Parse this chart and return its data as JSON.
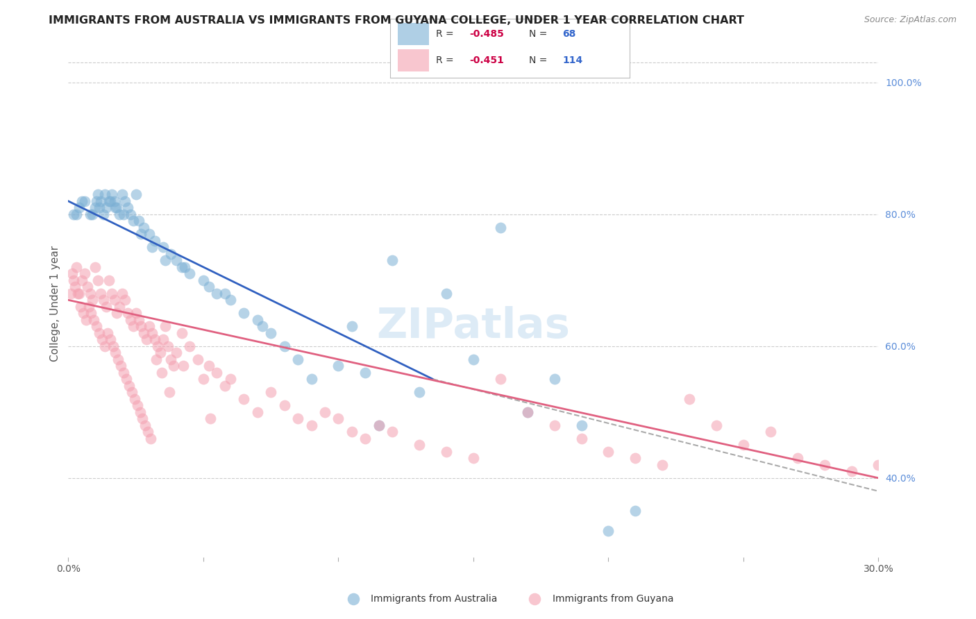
{
  "title": "IMMIGRANTS FROM AUSTRALIA VS IMMIGRANTS FROM GUYANA COLLEGE, UNDER 1 YEAR CORRELATION CHART",
  "source": "Source: ZipAtlas.com",
  "ylabel": "College, Under 1 year",
  "australia_color": "#7bafd4",
  "guyana_color": "#f4a0b0",
  "australia_label": "Immigrants from Australia",
  "guyana_label": "Immigrants from Guyana",
  "R_australia": -0.485,
  "N_australia": 68,
  "R_guyana": -0.451,
  "N_guyana": 114,
  "background_color": "#ffffff",
  "grid_color": "#cccccc",
  "right_axis_color": "#5b8dd9",
  "australia_scatter": {
    "x": [
      0.3,
      0.5,
      0.8,
      1.0,
      1.1,
      1.2,
      1.3,
      1.4,
      1.5,
      1.6,
      1.7,
      1.8,
      1.9,
      2.0,
      2.1,
      2.2,
      2.3,
      2.5,
      2.6,
      2.8,
      3.0,
      3.2,
      3.5,
      3.8,
      4.0,
      4.2,
      4.5,
      5.0,
      5.2,
      5.5,
      6.0,
      6.5,
      7.0,
      7.5,
      8.0,
      8.5,
      9.0,
      10.0,
      10.5,
      11.0,
      12.0,
      13.0,
      14.0,
      15.0,
      16.0,
      17.0,
      18.0,
      19.0,
      20.0,
      21.0,
      0.2,
      0.4,
      0.6,
      0.9,
      1.05,
      1.15,
      1.35,
      1.55,
      1.75,
      2.05,
      2.4,
      2.7,
      3.1,
      3.6,
      4.3,
      5.8,
      7.2,
      11.5
    ],
    "y": [
      80,
      82,
      80,
      81,
      83,
      82,
      80,
      81,
      82,
      83,
      82,
      81,
      80,
      83,
      82,
      81,
      80,
      83,
      79,
      78,
      77,
      76,
      75,
      74,
      73,
      72,
      71,
      70,
      69,
      68,
      67,
      65,
      64,
      62,
      60,
      58,
      55,
      57,
      63,
      56,
      73,
      53,
      68,
      58,
      78,
      50,
      55,
      48,
      32,
      35,
      80,
      81,
      82,
      80,
      82,
      81,
      83,
      82,
      81,
      80,
      79,
      77,
      75,
      73,
      72,
      68,
      63,
      48
    ]
  },
  "guyana_scatter": {
    "x": [
      0.1,
      0.2,
      0.3,
      0.4,
      0.5,
      0.6,
      0.7,
      0.8,
      0.9,
      1.0,
      1.1,
      1.2,
      1.3,
      1.4,
      1.5,
      1.6,
      1.7,
      1.8,
      1.9,
      2.0,
      2.1,
      2.2,
      2.3,
      2.4,
      2.5,
      2.6,
      2.7,
      2.8,
      2.9,
      3.0,
      3.1,
      3.2,
      3.3,
      3.4,
      3.5,
      3.6,
      3.7,
      3.8,
      3.9,
      4.0,
      4.2,
      4.5,
      4.8,
      5.0,
      5.2,
      5.5,
      5.8,
      6.0,
      6.5,
      7.0,
      7.5,
      8.0,
      8.5,
      9.0,
      9.5,
      10.0,
      10.5,
      11.0,
      11.5,
      12.0,
      13.0,
      14.0,
      15.0,
      16.0,
      17.0,
      18.0,
      19.0,
      20.0,
      21.0,
      22.0,
      23.0,
      24.0,
      25.0,
      26.0,
      27.0,
      28.0,
      29.0,
      30.0,
      0.15,
      0.25,
      0.35,
      0.45,
      0.55,
      0.65,
      0.75,
      0.85,
      0.95,
      1.05,
      1.15,
      1.25,
      1.35,
      1.45,
      1.55,
      1.65,
      1.75,
      1.85,
      1.95,
      2.05,
      2.15,
      2.25,
      2.35,
      2.45,
      2.55,
      2.65,
      2.75,
      2.85,
      2.95,
      3.05,
      3.25,
      3.45,
      3.75,
      4.25,
      5.25
    ],
    "y": [
      68,
      70,
      72,
      68,
      70,
      71,
      69,
      68,
      67,
      72,
      70,
      68,
      67,
      66,
      70,
      68,
      67,
      65,
      66,
      68,
      67,
      65,
      64,
      63,
      65,
      64,
      63,
      62,
      61,
      63,
      62,
      61,
      60,
      59,
      61,
      63,
      60,
      58,
      57,
      59,
      62,
      60,
      58,
      55,
      57,
      56,
      54,
      55,
      52,
      50,
      53,
      51,
      49,
      48,
      50,
      49,
      47,
      46,
      48,
      47,
      45,
      44,
      43,
      55,
      50,
      48,
      46,
      44,
      43,
      42,
      52,
      48,
      45,
      47,
      43,
      42,
      41,
      42,
      71,
      69,
      68,
      66,
      65,
      64,
      66,
      65,
      64,
      63,
      62,
      61,
      60,
      62,
      61,
      60,
      59,
      58,
      57,
      56,
      55,
      54,
      53,
      52,
      51,
      50,
      49,
      48,
      47,
      46,
      58,
      56,
      53,
      57,
      49
    ]
  },
  "australia_line": {
    "x0": 0.0,
    "y0": 82.0,
    "x1": 13.5,
    "y1": 55.0
  },
  "australia_line_dashed": {
    "x0": 13.5,
    "y0": 55.0,
    "x1": 30.0,
    "y1": 38.0
  },
  "guyana_line": {
    "x0": 0.0,
    "y0": 67.0,
    "x1": 30.0,
    "y1": 40.0
  },
  "xmin": 0.0,
  "xmax": 30.0,
  "ymin": 28.0,
  "ymax": 105.0
}
